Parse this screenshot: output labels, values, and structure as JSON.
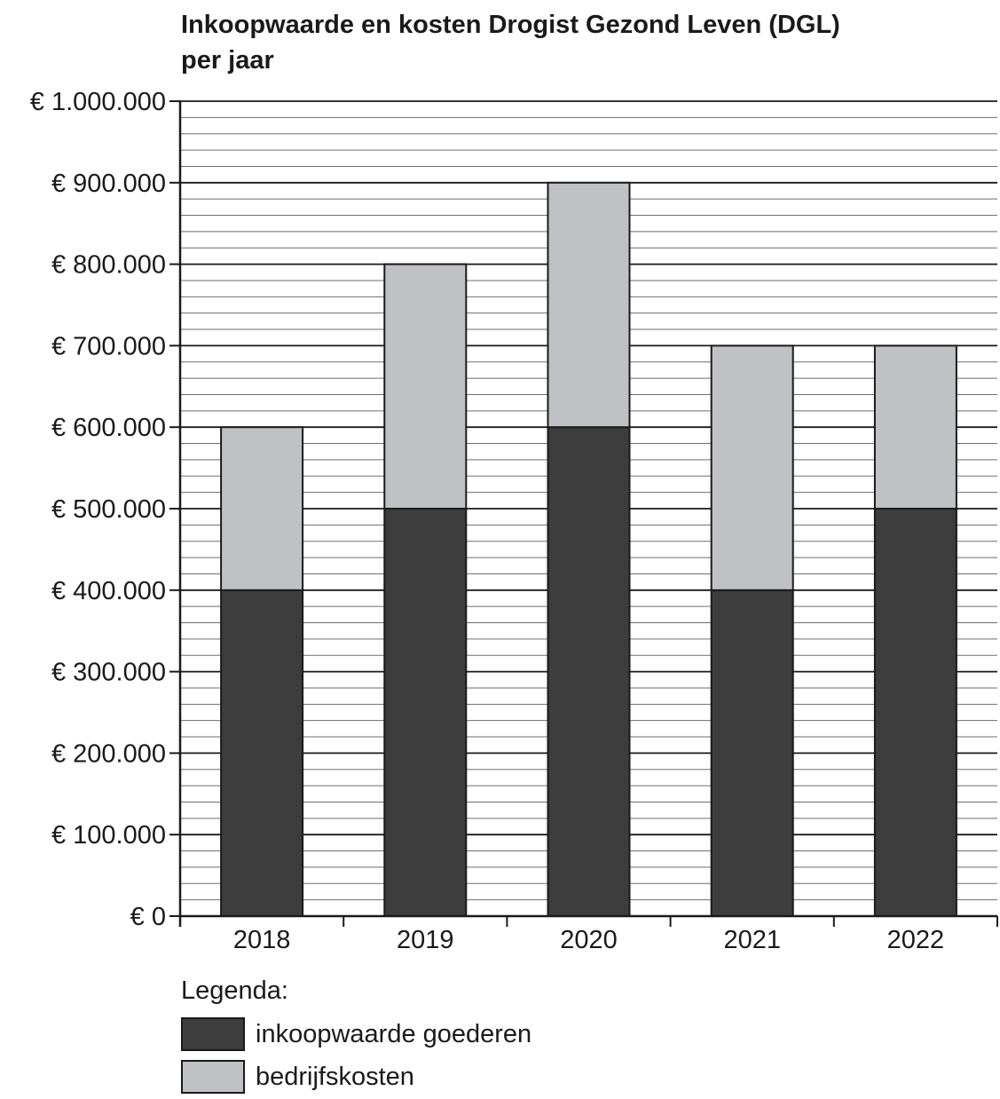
{
  "chart_data": {
    "type": "bar",
    "stacked": true,
    "title": [
      "Inkoopwaarde en kosten Drogist Gezond Leven (DGL)",
      "per jaar"
    ],
    "xlabel": "",
    "ylabel": "",
    "categories": [
      "2018",
      "2019",
      "2020",
      "2021",
      "2022"
    ],
    "series": [
      {
        "name": "inkoopwaarde goederen",
        "color": "#3d3d3d",
        "values": [
          400000,
          500000,
          600000,
          400000,
          500000
        ]
      },
      {
        "name": "bedrijfskosten",
        "color": "#c0c1c4",
        "values": [
          200000,
          300000,
          300000,
          300000,
          200000
        ]
      }
    ],
    "ylim": [
      0,
      1000000
    ],
    "yticks": [
      {
        "value": 0,
        "label": "€ 0"
      },
      {
        "value": 100000,
        "label": "€ 100.000"
      },
      {
        "value": 200000,
        "label": "€ 200.000"
      },
      {
        "value": 300000,
        "label": "€ 300.000"
      },
      {
        "value": 400000,
        "label": "€ 400.000"
      },
      {
        "value": 500000,
        "label": "€ 500.000"
      },
      {
        "value": 600000,
        "label": "€ 600.000"
      },
      {
        "value": 700000,
        "label": "€ 700.000"
      },
      {
        "value": 800000,
        "label": "€ 800.000"
      },
      {
        "value": 900000,
        "label": "€ 900.000"
      },
      {
        "value": 1000000,
        "label": "€ 1.000.000"
      }
    ],
    "minor_grid_step": 20000,
    "grid": true,
    "legend": {
      "title": "Legenda:",
      "placement": "bottom-left"
    }
  }
}
